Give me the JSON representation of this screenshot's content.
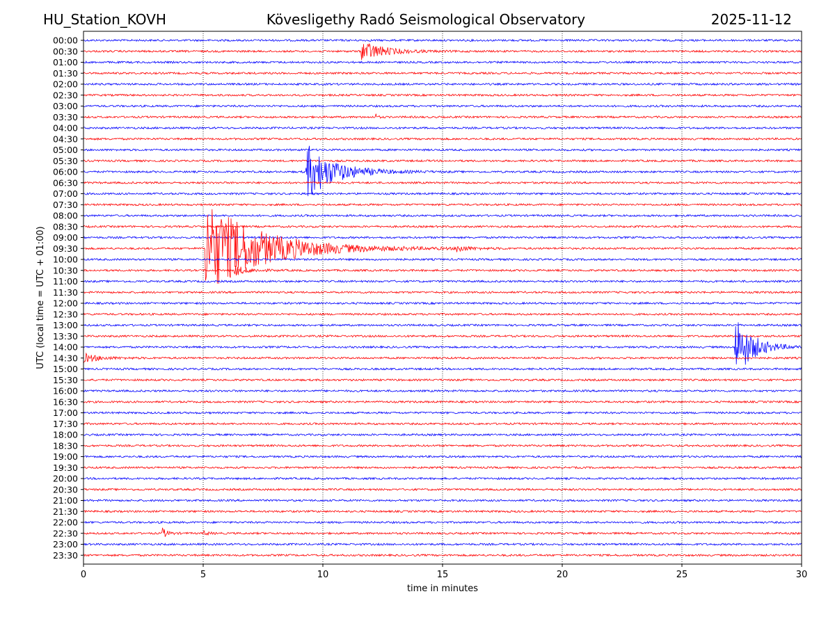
{
  "header": {
    "station": "HU_Station_KOVH",
    "title": "Kövesligethy Radó Seismological Observatory",
    "date": "2025-11-12"
  },
  "chart_data": {
    "type": "line",
    "title": "Kövesligethy Radó Seismological Observatory",
    "xlabel": "time in minutes",
    "ylabel": "UTC (local time = UTC + 01:00)",
    "xlim": [
      0,
      30
    ],
    "x_ticks": [
      0,
      5,
      10,
      15,
      20,
      25,
      30
    ],
    "grid": "vertical dotted at x ticks",
    "row_colors": [
      "#0000ff",
      "#ff0000"
    ],
    "rows": [
      "00:00",
      "00:30",
      "01:00",
      "01:30",
      "02:00",
      "02:30",
      "03:00",
      "03:30",
      "04:00",
      "04:30",
      "05:00",
      "05:30",
      "06:00",
      "06:30",
      "07:00",
      "07:30",
      "08:00",
      "08:30",
      "09:00",
      "09:30",
      "10:00",
      "10:30",
      "11:00",
      "11:30",
      "12:00",
      "12:30",
      "13:00",
      "13:30",
      "14:00",
      "14:30",
      "15:00",
      "15:30",
      "16:00",
      "16:30",
      "17:00",
      "17:30",
      "18:00",
      "18:30",
      "19:00",
      "19:30",
      "20:00",
      "20:30",
      "21:00",
      "21:30",
      "22:00",
      "22:30",
      "23:00",
      "23:30"
    ],
    "events": [
      {
        "row": "00:30",
        "start_min": 11.6,
        "duration_min": 3.5,
        "amplitude_rows": 1.0
      },
      {
        "row": "03:30",
        "start_min": 12.2,
        "duration_min": 0.3,
        "amplitude_rows": 0.35
      },
      {
        "row": "06:00",
        "start_min": 9.3,
        "duration_min": 4.5,
        "amplitude_rows": 2.6
      },
      {
        "row": "09:30",
        "start_min": 5.1,
        "duration_min": 9.0,
        "amplitude_rows": 4.3
      },
      {
        "row": "09:30",
        "start_min": 15.6,
        "duration_min": 1.3,
        "amplitude_rows": 0.35
      },
      {
        "row": "10:30",
        "start_min": 6.3,
        "duration_min": 2.2,
        "amplitude_rows": 0.45
      },
      {
        "row": "14:00",
        "start_min": 27.2,
        "duration_min": 2.8,
        "amplitude_rows": 3.0
      },
      {
        "row": "14:30",
        "start_min": 0.0,
        "duration_min": 2.5,
        "amplitude_rows": 0.4
      },
      {
        "row": "22:30",
        "start_min": 3.3,
        "duration_min": 0.8,
        "amplitude_rows": 0.45
      },
      {
        "row": "22:30",
        "start_min": 5.0,
        "duration_min": 0.8,
        "amplitude_rows": 0.2
      }
    ]
  }
}
